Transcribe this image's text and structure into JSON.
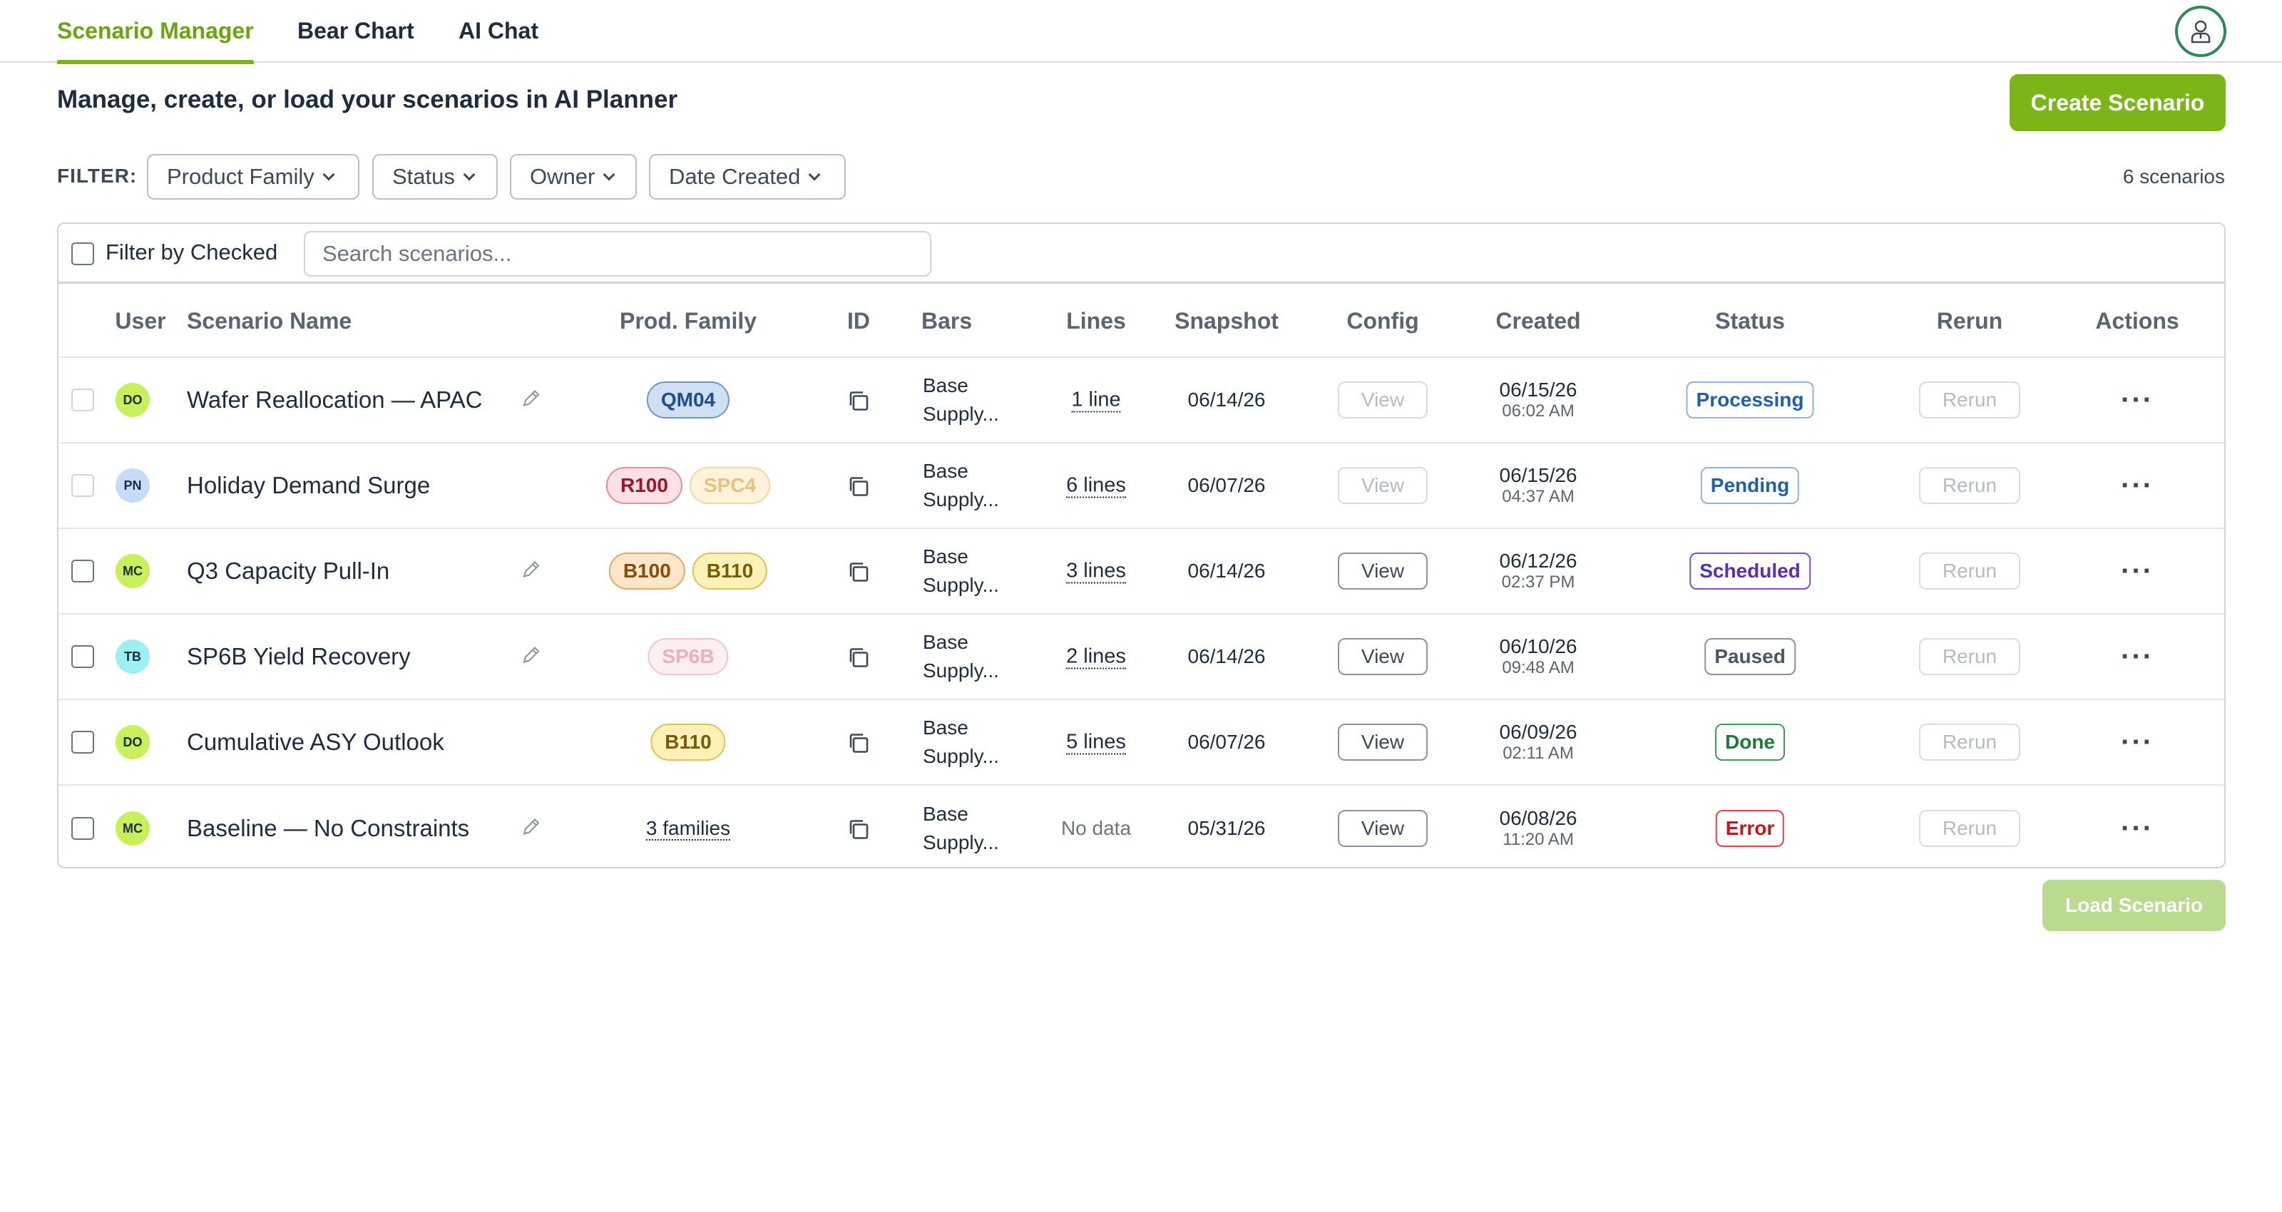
{
  "nav": {
    "tabs": [
      {
        "label": "Scenario Manager",
        "active": true
      },
      {
        "label": "Bear Chart",
        "active": false
      },
      {
        "label": "AI Chat",
        "active": false
      }
    ]
  },
  "header": {
    "title": "Manage, create, or load your scenarios in AI Planner",
    "create_label": "Create Scenario"
  },
  "filters": {
    "label": "FILTER:",
    "items": [
      "Product Family",
      "Status",
      "Owner",
      "Date Created"
    ],
    "count_text": "6 scenarios"
  },
  "toolbar": {
    "filter_checked_label": "Filter by Checked",
    "search_placeholder": "Search scenarios..."
  },
  "columns": [
    "User",
    "Scenario Name",
    "Prod. Family",
    "ID",
    "Bars",
    "Lines",
    "Snapshot",
    "Config",
    "Created",
    "Status",
    "Rerun",
    "Actions"
  ],
  "rows": [
    {
      "initials": "DO",
      "avatar_color": "#c7f05a",
      "name": "Wafer Reallocation — APAC",
      "editable": true,
      "families": [
        {
          "label": "QM04",
          "bg": "#cfe0f5",
          "border": "#6f93c4",
          "color": "#1f4e8a"
        }
      ],
      "bars": [
        "Base",
        "Supply..."
      ],
      "lines": "1 line",
      "snapshot": "06/14/26",
      "config": "View",
      "config_enabled": false,
      "created_date": "06/15/26",
      "created_time": "06:02 AM",
      "status": "Processing",
      "status_color": "#1f5fae",
      "status_border": "#8fb4e3",
      "rerun": "Rerun"
    },
    {
      "initials": "PN",
      "avatar_color": "#c4dcf7",
      "name": "Holiday Demand Surge",
      "editable": false,
      "families": [
        {
          "label": "R100",
          "bg": "#fde1e4",
          "border": "#e58c98",
          "color": "#a1122c"
        },
        {
          "label": "SPC4",
          "bg": "#fff3dc",
          "border": "#f5d79e",
          "color": "#e8c07a"
        }
      ],
      "bars": [
        "Base",
        "Supply..."
      ],
      "lines": "6 lines",
      "snapshot": "06/07/26",
      "config": "View",
      "config_enabled": false,
      "created_date": "06/15/26",
      "created_time": "04:37 AM",
      "status": "Pending",
      "status_color": "#1f5fae",
      "status_border": "#8fb4e3",
      "rerun": "Rerun"
    },
    {
      "initials": "MC",
      "avatar_color": "#c7f05a",
      "name": "Q3 Capacity Pull-In",
      "editable": true,
      "families": [
        {
          "label": "B100",
          "bg": "#fde7c8",
          "border": "#e2a861",
          "color": "#8a4a0c"
        },
        {
          "label": "B110",
          "bg": "#fdf1b8",
          "border": "#e0c051",
          "color": "#7a5a00"
        }
      ],
      "bars": [
        "Base",
        "Supply..."
      ],
      "lines": "3 lines",
      "snapshot": "06/14/26",
      "config": "View",
      "config_enabled": true,
      "created_date": "06/12/26",
      "created_time": "02:37 PM",
      "status": "Scheduled",
      "status_color": "#5b2fb0",
      "status_border": "#7c4ed1",
      "rerun": "Rerun"
    },
    {
      "initials": "TB",
      "avatar_color": "#9eeff2",
      "name": "SP6B Yield Recovery",
      "editable": true,
      "families": [
        {
          "label": "SP6B",
          "bg": "#fdeef0",
          "border": "#f5c3cb",
          "color": "#eab0bb"
        }
      ],
      "bars": [
        "Base",
        "Supply..."
      ],
      "lines": "2 lines",
      "snapshot": "06/14/26",
      "config": "View",
      "config_enabled": true,
      "created_date": "06/10/26",
      "created_time": "09:48 AM",
      "status": "Paused",
      "status_color": "#4b5866",
      "status_border": "#8a939c",
      "rerun": "Rerun"
    },
    {
      "initials": "DO",
      "avatar_color": "#c7f05a",
      "name": "Cumulative ASY Outlook",
      "editable": false,
      "families": [
        {
          "label": "B110",
          "bg": "#fdf1b8",
          "border": "#e0c051",
          "color": "#7a5a00"
        }
      ],
      "bars": [
        "Base",
        "Supply..."
      ],
      "lines": "5 lines",
      "snapshot": "06/07/26",
      "config": "View",
      "config_enabled": true,
      "created_date": "06/09/26",
      "created_time": "02:11 AM",
      "status": "Done",
      "status_color": "#1f7a3a",
      "status_border": "#3f9d56",
      "rerun": "Rerun"
    },
    {
      "initials": "MC",
      "avatar_color": "#c7f05a",
      "name": "Baseline — No Constraints",
      "editable": true,
      "families_text": "3 families",
      "bars": [
        "Base",
        "Supply..."
      ],
      "lines_text": "No data",
      "snapshot": "05/31/26",
      "config": "View",
      "config_enabled": true,
      "created_date": "06/08/26",
      "created_time": "11:20 AM",
      "status": "Error",
      "status_color": "#c4161c",
      "status_border": "#e0424a",
      "rerun": "Rerun"
    }
  ],
  "footer": {
    "load_label": "Load Scenario"
  }
}
